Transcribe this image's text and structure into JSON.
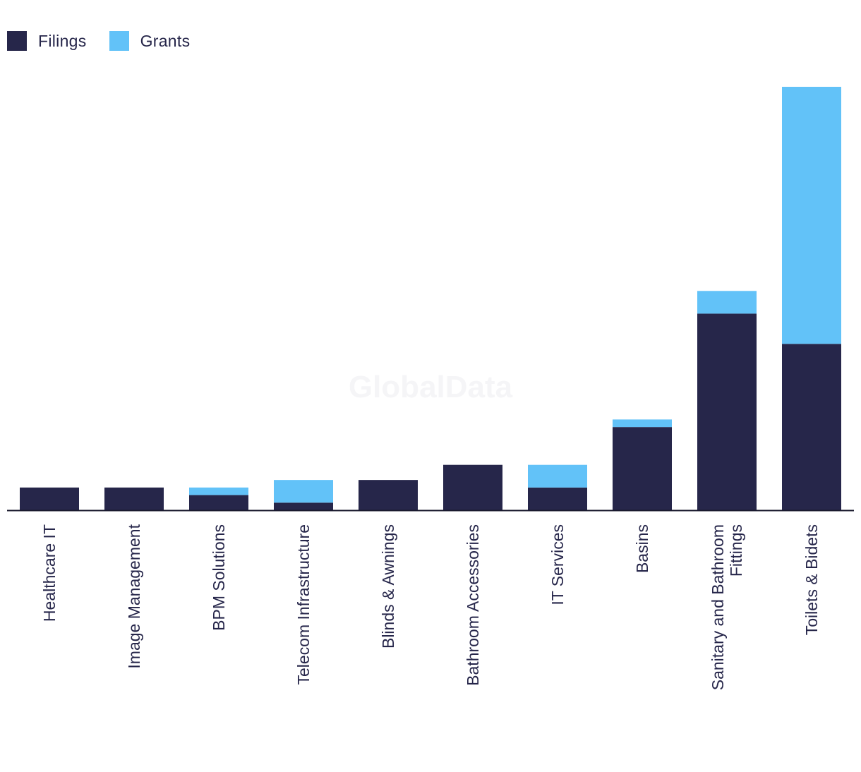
{
  "legend": {
    "filings_label": "Filings",
    "grants_label": "Grants"
  },
  "watermark": "GlobalData",
  "colors": {
    "filings": "#26264a",
    "grants": "#62c2f8",
    "axis": "#1a1a2e"
  },
  "chart_data": {
    "type": "bar",
    "stacked": true,
    "categories": [
      [
        "Healthcare IT"
      ],
      [
        "Image Management"
      ],
      [
        "BPM Solutions"
      ],
      [
        "Telecom Infrastructure"
      ],
      [
        "Blinds & Awnings"
      ],
      [
        "Bathroom Accessories"
      ],
      [
        "IT Services"
      ],
      [
        "Basins"
      ],
      [
        "Sanitary and Bathroom",
        "Fittings"
      ],
      [
        "Toilets & Bidets"
      ]
    ],
    "series": [
      {
        "name": "Filings",
        "values": [
          3,
          3,
          2,
          1,
          4,
          6,
          3,
          11,
          26,
          22
        ]
      },
      {
        "name": "Grants",
        "values": [
          0,
          0,
          1,
          3,
          0,
          0,
          3,
          1,
          3,
          34
        ]
      }
    ],
    "ylim": [
      0,
      56
    ],
    "legend_position": "top-left",
    "grid": false
  }
}
